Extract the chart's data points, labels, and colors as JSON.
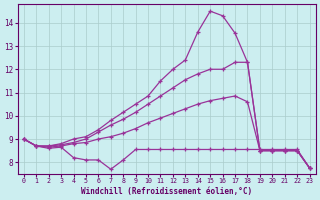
{
  "bg_color": "#cceef0",
  "line_color": "#993399",
  "grid_color": "#aacccc",
  "axis_color": "#660066",
  "xlabel": "Windchill (Refroidissement éolien,°C)",
  "xlim": [
    -0.5,
    23.5
  ],
  "ylim": [
    7.5,
    14.8
  ],
  "yticks": [
    8,
    9,
    10,
    11,
    12,
    13,
    14
  ],
  "xticks": [
    0,
    1,
    2,
    3,
    4,
    5,
    6,
    7,
    8,
    9,
    10,
    11,
    12,
    13,
    14,
    15,
    16,
    17,
    18,
    19,
    20,
    21,
    22,
    23
  ],
  "series": [
    {
      "x": [
        0,
        1,
        2,
        3,
        4,
        5,
        6,
        7,
        8,
        9,
        10,
        11,
        12,
        13,
        14,
        15,
        16,
        17,
        18,
        19,
        20,
        21,
        22,
        23
      ],
      "y": [
        9.0,
        8.7,
        8.6,
        8.65,
        8.2,
        8.1,
        8.1,
        7.7,
        8.1,
        8.55,
        8.55,
        8.55,
        8.55,
        8.55,
        8.55,
        8.55,
        8.55,
        8.55,
        8.55,
        8.55,
        8.55,
        8.55,
        8.55,
        7.75
      ]
    },
    {
      "x": [
        0,
        1,
        2,
        3,
        4,
        5,
        6,
        7,
        8,
        9,
        10,
        11,
        12,
        13,
        14,
        15,
        16,
        17,
        18,
        19,
        20,
        21,
        22,
        23
      ],
      "y": [
        9.0,
        8.7,
        8.65,
        8.7,
        8.8,
        8.85,
        9.0,
        9.1,
        9.25,
        9.45,
        9.7,
        9.9,
        10.1,
        10.3,
        10.5,
        10.65,
        10.75,
        10.85,
        10.6,
        8.5,
        8.5,
        8.5,
        8.5,
        7.75
      ]
    },
    {
      "x": [
        0,
        1,
        2,
        3,
        4,
        5,
        6,
        7,
        8,
        9,
        10,
        11,
        12,
        13,
        14,
        15,
        16,
        17,
        18,
        19,
        20,
        21,
        22,
        23
      ],
      "y": [
        9.0,
        8.7,
        8.7,
        8.75,
        8.85,
        9.0,
        9.3,
        9.6,
        9.85,
        10.15,
        10.5,
        10.85,
        11.2,
        11.55,
        11.8,
        12.0,
        12.0,
        12.3,
        12.3,
        8.5,
        8.5,
        8.5,
        8.5,
        7.75
      ]
    },
    {
      "x": [
        0,
        1,
        2,
        3,
        4,
        5,
        6,
        7,
        8,
        9,
        10,
        11,
        12,
        13,
        14,
        15,
        16,
        17,
        18,
        19,
        20,
        21,
        22,
        23
      ],
      "y": [
        9.0,
        8.7,
        8.7,
        8.8,
        9.0,
        9.1,
        9.4,
        9.8,
        10.15,
        10.5,
        10.85,
        11.5,
        12.0,
        12.4,
        13.6,
        14.5,
        14.3,
        13.55,
        12.3,
        8.5,
        8.5,
        8.5,
        8.5,
        7.75
      ]
    }
  ]
}
